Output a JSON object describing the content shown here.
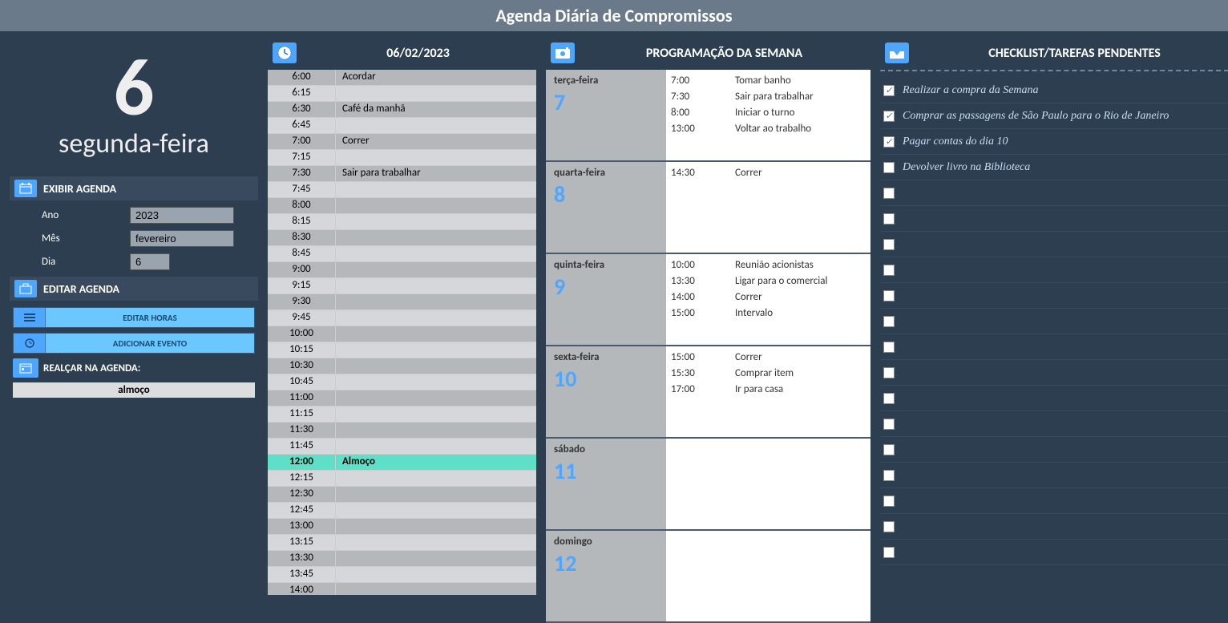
{
  "header": {
    "title": "Agenda Diária de Compromissos"
  },
  "sidebar": {
    "day_number": "6",
    "day_name": "segunda-feira",
    "exhibit_label": "EXIBIR AGENDA",
    "year_label": "Ano",
    "year_value": "2023",
    "month_label": "Mês",
    "month_value": "fevereiro",
    "day_label": "Dia",
    "day_value": "6",
    "edit_label": "EDITAR AGENDA",
    "edit_hours_btn": "EDITAR HORAS",
    "add_event_btn": "ADICIONAR EVENTO",
    "highlight_label": "REALÇAR NA AGENDA:",
    "highlight_value": "almoço"
  },
  "daily": {
    "title": "06/02/2023",
    "rows": [
      {
        "time": "6:00",
        "event": "Acordar",
        "cls": "alt"
      },
      {
        "time": "6:15",
        "event": "",
        "cls": "norm"
      },
      {
        "time": "6:30",
        "event": "Café da manhã",
        "cls": "alt"
      },
      {
        "time": "6:45",
        "event": "",
        "cls": "norm"
      },
      {
        "time": "7:00",
        "event": "Correr",
        "cls": "alt"
      },
      {
        "time": "7:15",
        "event": "",
        "cls": "norm"
      },
      {
        "time": "7:30",
        "event": "Sair para trabalhar",
        "cls": "alt"
      },
      {
        "time": "7:45",
        "event": "",
        "cls": "norm"
      },
      {
        "time": "8:00",
        "event": "",
        "cls": "alt"
      },
      {
        "time": "8:15",
        "event": "",
        "cls": "norm"
      },
      {
        "time": "8:30",
        "event": "",
        "cls": "alt"
      },
      {
        "time": "8:45",
        "event": "",
        "cls": "norm"
      },
      {
        "time": "9:00",
        "event": "",
        "cls": "alt"
      },
      {
        "time": "9:15",
        "event": "",
        "cls": "norm"
      },
      {
        "time": "9:30",
        "event": "",
        "cls": "alt"
      },
      {
        "time": "9:45",
        "event": "",
        "cls": "norm"
      },
      {
        "time": "10:00",
        "event": "",
        "cls": "alt"
      },
      {
        "time": "10:15",
        "event": "",
        "cls": "norm"
      },
      {
        "time": "10:30",
        "event": "",
        "cls": "alt"
      },
      {
        "time": "10:45",
        "event": "",
        "cls": "norm"
      },
      {
        "time": "11:00",
        "event": "",
        "cls": "alt"
      },
      {
        "time": "11:15",
        "event": "",
        "cls": "norm"
      },
      {
        "time": "11:30",
        "event": "",
        "cls": "alt"
      },
      {
        "time": "11:45",
        "event": "",
        "cls": "norm"
      },
      {
        "time": "12:00",
        "event": "Almoço",
        "cls": "highlight"
      },
      {
        "time": "12:15",
        "event": "",
        "cls": "norm"
      },
      {
        "time": "12:30",
        "event": "",
        "cls": "alt"
      },
      {
        "time": "12:45",
        "event": "",
        "cls": "norm"
      },
      {
        "time": "13:00",
        "event": "",
        "cls": "alt"
      },
      {
        "time": "13:15",
        "event": "",
        "cls": "norm"
      },
      {
        "time": "13:30",
        "event": "",
        "cls": "alt"
      },
      {
        "time": "13:45",
        "event": "",
        "cls": "norm"
      },
      {
        "time": "14:00",
        "event": "",
        "cls": "alt"
      }
    ]
  },
  "week": {
    "title": "PROGRAMAÇÃO DA SEMANA",
    "days": [
      {
        "name": "terça-feira",
        "num": "7",
        "events": [
          {
            "t": "7:00",
            "e": "Tomar banho"
          },
          {
            "t": "7:30",
            "e": "Sair para trabalhar"
          },
          {
            "t": "8:00",
            "e": "Iniciar o turno"
          },
          {
            "t": "13:00",
            "e": "Voltar ao trabalho"
          }
        ]
      },
      {
        "name": "quarta-feira",
        "num": "8",
        "events": [
          {
            "t": "14:30",
            "e": "Correr"
          }
        ]
      },
      {
        "name": "quinta-feira",
        "num": "9",
        "events": [
          {
            "t": "10:00",
            "e": "Reunião acionistas"
          },
          {
            "t": "13:30",
            "e": "Ligar para o comercial"
          },
          {
            "t": "14:00",
            "e": "Correr"
          },
          {
            "t": "15:00",
            "e": "Intervalo"
          }
        ]
      },
      {
        "name": "sexta-feira",
        "num": "10",
        "events": [
          {
            "t": "15:00",
            "e": "Correr"
          },
          {
            "t": "15:30",
            "e": "Comprar item"
          },
          {
            "t": "17:00",
            "e": "Ir para casa"
          }
        ]
      },
      {
        "name": "sábado",
        "num": "11",
        "events": []
      },
      {
        "name": "domingo",
        "num": "12",
        "events": []
      }
    ]
  },
  "checklist": {
    "title": "CHECKLIST/TAREFAS PENDENTES",
    "items": [
      {
        "checked": true,
        "text": "Realizar a compra da Semana"
      },
      {
        "checked": true,
        "text": "Comprar as passagens de São Paulo para o Rio de Janeiro"
      },
      {
        "checked": true,
        "text": "Pagar contas do dia 10"
      },
      {
        "checked": false,
        "text": "Devolver livro na Biblioteca"
      },
      {
        "checked": false,
        "text": ""
      },
      {
        "checked": false,
        "text": ""
      },
      {
        "checked": false,
        "text": ""
      },
      {
        "checked": false,
        "text": ""
      },
      {
        "checked": false,
        "text": ""
      },
      {
        "checked": false,
        "text": ""
      },
      {
        "checked": false,
        "text": ""
      },
      {
        "checked": false,
        "text": ""
      },
      {
        "checked": false,
        "text": ""
      },
      {
        "checked": false,
        "text": ""
      },
      {
        "checked": false,
        "text": ""
      },
      {
        "checked": false,
        "text": ""
      },
      {
        "checked": false,
        "text": ""
      },
      {
        "checked": false,
        "text": ""
      },
      {
        "checked": false,
        "text": ""
      }
    ]
  },
  "colors": {
    "bg": "#2d3e50",
    "header_bg": "#6b7a8a",
    "accent": "#4da6ff",
    "btn_bg": "#6cc6ff",
    "highlight_row": "#5ee0c8",
    "row_alt": "#b5b8bb",
    "row_norm": "#d5d8db",
    "checklist_text": "#c8dff5"
  }
}
